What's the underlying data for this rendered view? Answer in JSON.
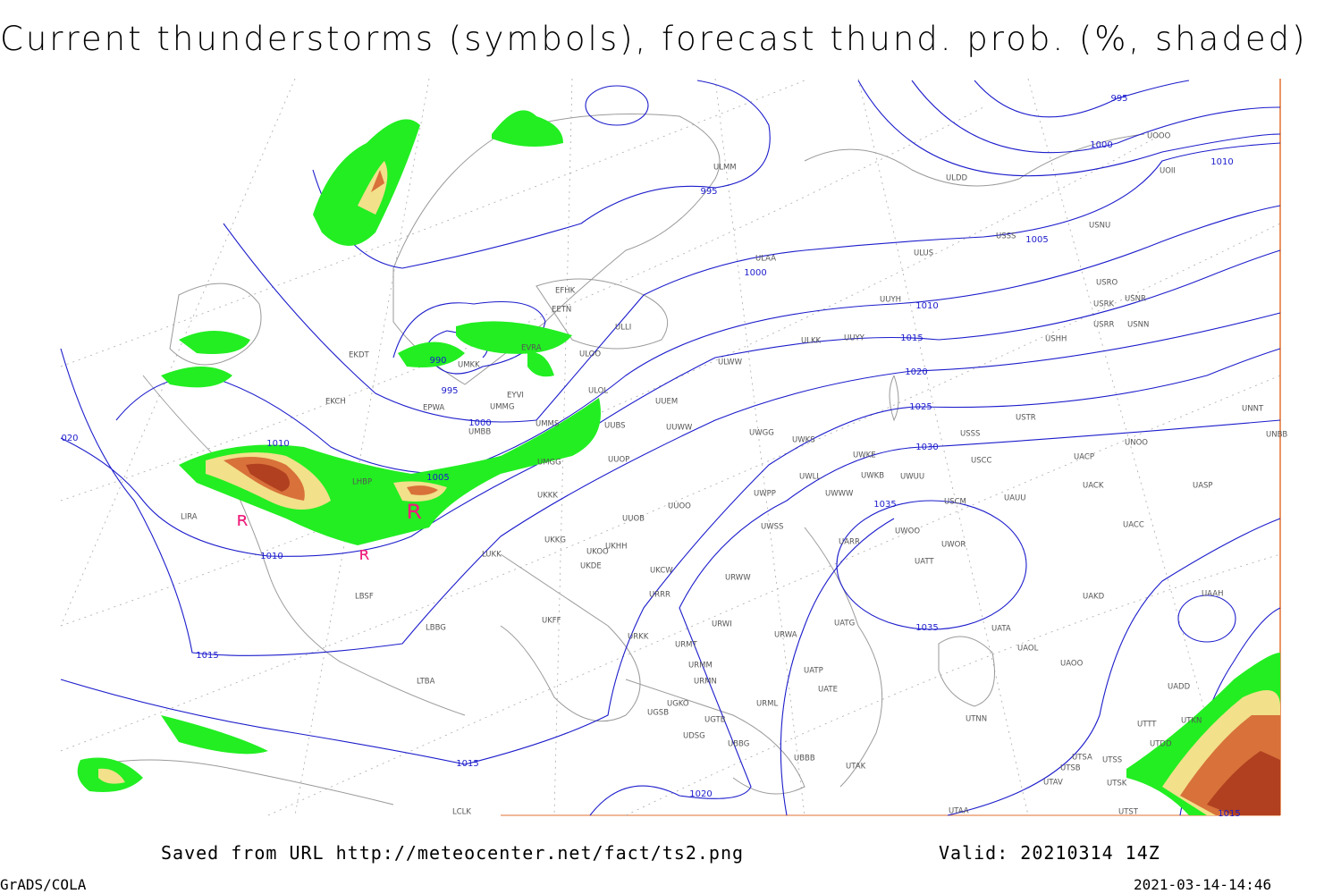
{
  "header": {
    "title": "Current thunderstorms (symbols), forecast thund. prob. (%, shaded)"
  },
  "isobar_labels": [
    "995",
    "1000",
    "1010",
    "995",
    "1005",
    "1000",
    "1010",
    "1015",
    "990",
    "995",
    "1000",
    "1020",
    "1025",
    "1010",
    "1005",
    "1030",
    "1035",
    "1010",
    "1035",
    "1015",
    "1015",
    "1020",
    "1015",
    "020"
  ],
  "stations": [
    "ULMM",
    "ULDD",
    "UOOO",
    "UOII",
    "USNU",
    "USSS",
    "ULAA",
    "ULUS",
    "USRO",
    "USRK",
    "USNR",
    "UUYH",
    "EFHK",
    "EETN",
    "USRR",
    "USNN",
    "ULLI",
    "UUYY",
    "ULKK",
    "USHH",
    "ULOO",
    "EVRA",
    "EKDT",
    "ULWW",
    "UMKK",
    "EYVI",
    "ULOL",
    "EPWA",
    "UMMG",
    "EKCH",
    "UUEM",
    "USTR",
    "UUWW",
    "UMMS",
    "UUBS",
    "UNNT",
    "USSS",
    "UWGG",
    "UWKS",
    "UNOO",
    "UNBB",
    "UMBB",
    "UMGG",
    "UUOP",
    "UACP",
    "UWKE",
    "USCC",
    "UWKB",
    "UWUU",
    "UWLL",
    "LHBP",
    "UKKK",
    "UWPP",
    "UWWW",
    "UACK",
    "UASP",
    "USCM",
    "UAUU",
    "UUOO",
    "UUOB",
    "LIRA",
    "UWSS",
    "UACC",
    "UKKG",
    "UKOO",
    "UKHH",
    "UKDE",
    "LUKK",
    "UWOO",
    "UWOR",
    "UARR",
    "UATT",
    "UKCW",
    "URWW",
    "URRR",
    "LBSF",
    "UAKD",
    "UAAH",
    "UKFF",
    "URWI",
    "UATG",
    "LBBG",
    "URKK",
    "URWA",
    "UATA",
    "URMT",
    "UAOL",
    "UAOO",
    "URMM",
    "UATP",
    "URMN",
    "UATE",
    "LTBA",
    "UADD",
    "URML",
    "UGKO",
    "UGSB",
    "UGTB",
    "UTNN",
    "UTKN",
    "UTTT",
    "UDSG",
    "UBBG",
    "UTDD",
    "UBBB",
    "UTSA",
    "UTSS",
    "UTAK",
    "UTSB",
    "UTAV",
    "UTSK",
    "UTAA",
    "UTST",
    "LCLK"
  ],
  "footer": {
    "source": "Saved from URL http://meteocenter.net/fact/ts2.png",
    "valid": "Valid: 20210314 14Z",
    "software": "GrADS/COLA",
    "timestamp": "2021-03-14-14:46"
  }
}
